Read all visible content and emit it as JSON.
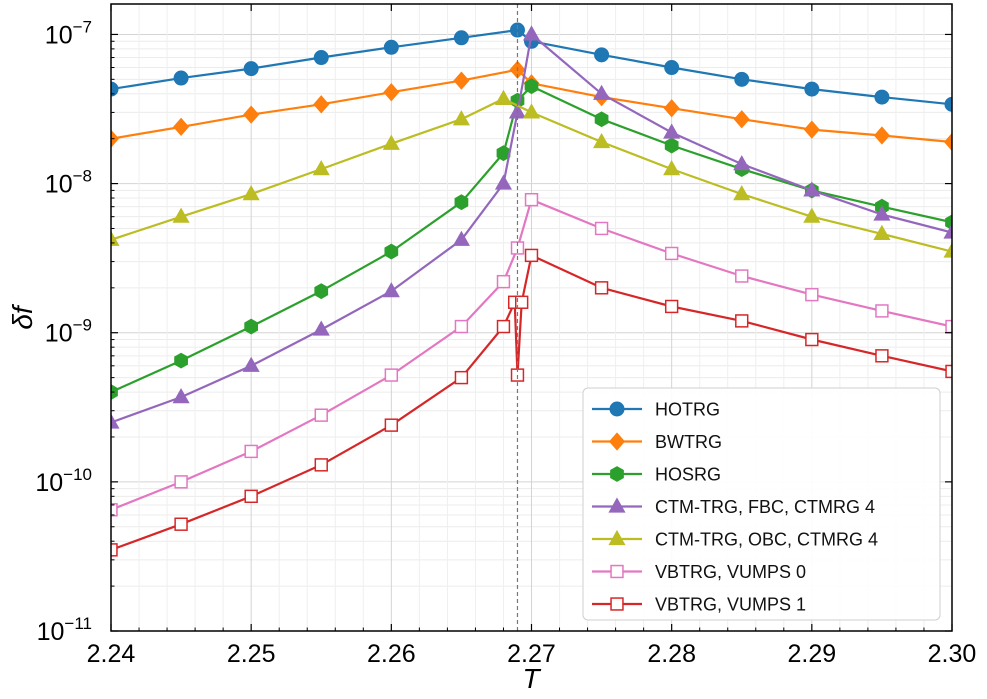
{
  "chart_data": {
    "type": "line",
    "scale": {
      "x": "linear",
      "y": "log"
    },
    "xlabel": "T",
    "ylabel": "δf",
    "xlim": [
      2.24,
      2.3
    ],
    "ylim": [
      1e-11,
      1.6e-07
    ],
    "critical_temperature": 2.269,
    "x_ticks": [
      {
        "value": 2.24,
        "label": "2.24"
      },
      {
        "value": 2.25,
        "label": "2.25"
      },
      {
        "value": 2.26,
        "label": "2.26"
      },
      {
        "value": 2.27,
        "label": "2.27"
      },
      {
        "value": 2.28,
        "label": "2.28"
      },
      {
        "value": 2.29,
        "label": "2.29"
      },
      {
        "value": 2.3,
        "label": "2.30"
      }
    ],
    "y_ticks": [
      {
        "value": 1e-11,
        "base": "10",
        "exp": "−11"
      },
      {
        "value": 1e-10,
        "base": "10",
        "exp": "−10"
      },
      {
        "value": 1e-09,
        "base": "10",
        "exp": "−9"
      },
      {
        "value": 1e-08,
        "base": "10",
        "exp": "−8"
      },
      {
        "value": 1e-07,
        "base": "10",
        "exp": "−7"
      }
    ],
    "legend_position": "lower-right",
    "series": [
      {
        "name": "HOTRG",
        "color": "#1f77b4",
        "marker": "circle",
        "filled": true,
        "x": [
          2.24,
          2.245,
          2.25,
          2.255,
          2.26,
          2.265,
          2.269,
          2.27,
          2.275,
          2.28,
          2.285,
          2.29,
          2.295,
          2.3
        ],
        "y": [
          4.3e-08,
          5.1e-08,
          5.9e-08,
          7e-08,
          8.2e-08,
          9.5e-08,
          1.07e-07,
          9e-08,
          7.3e-08,
          6e-08,
          5e-08,
          4.3e-08,
          3.8e-08,
          3.4e-08
        ]
      },
      {
        "name": "BWTRG",
        "color": "#ff7f0e",
        "marker": "diamond",
        "filled": true,
        "x": [
          2.24,
          2.245,
          2.25,
          2.255,
          2.26,
          2.265,
          2.269,
          2.27,
          2.275,
          2.28,
          2.285,
          2.29,
          2.295,
          2.3
        ],
        "y": [
          2e-08,
          2.4e-08,
          2.9e-08,
          3.4e-08,
          4.1e-08,
          4.9e-08,
          5.8e-08,
          4.7e-08,
          3.8e-08,
          3.2e-08,
          2.7e-08,
          2.3e-08,
          2.1e-08,
          1.9e-08
        ]
      },
      {
        "name": "HOSRG",
        "color": "#2ca02c",
        "marker": "hexagon",
        "filled": true,
        "x": [
          2.24,
          2.245,
          2.25,
          2.255,
          2.26,
          2.265,
          2.268,
          2.269,
          2.27,
          2.275,
          2.28,
          2.285,
          2.29,
          2.295,
          2.3
        ],
        "y": [
          4e-10,
          6.5e-10,
          1.1e-09,
          1.9e-09,
          3.5e-09,
          7.5e-09,
          1.6e-08,
          3.6e-08,
          4.5e-08,
          2.7e-08,
          1.8e-08,
          1.25e-08,
          9e-09,
          7e-09,
          5.5e-09
        ]
      },
      {
        "name": "CTM-TRG, FBC, CTMRG 4",
        "color": "#9467bd",
        "marker": "triangle",
        "filled": true,
        "x": [
          2.24,
          2.245,
          2.25,
          2.255,
          2.26,
          2.265,
          2.268,
          2.269,
          2.27,
          2.275,
          2.28,
          2.285,
          2.29,
          2.295,
          2.3
        ],
        "y": [
          2.5e-10,
          3.7e-10,
          6e-10,
          1.05e-09,
          1.9e-09,
          4.2e-09,
          1e-08,
          3e-08,
          1e-07,
          4e-08,
          2.2e-08,
          1.35e-08,
          9e-09,
          6.2e-09,
          4.7e-09
        ]
      },
      {
        "name": "CTM-TRG, OBC, CTMRG 4",
        "color": "#bcbd22",
        "marker": "triangle",
        "filled": true,
        "x": [
          2.24,
          2.245,
          2.25,
          2.255,
          2.26,
          2.265,
          2.268,
          2.27,
          2.275,
          2.28,
          2.285,
          2.29,
          2.295,
          2.3
        ],
        "y": [
          4.2e-09,
          6e-09,
          8.5e-09,
          1.25e-08,
          1.85e-08,
          2.7e-08,
          3.7e-08,
          3e-08,
          1.9e-08,
          1.25e-08,
          8.5e-09,
          6e-09,
          4.6e-09,
          3.5e-09
        ]
      },
      {
        "name": "VBTRG, VUMPS 0",
        "color": "#e377c2",
        "marker": "square",
        "filled": false,
        "x": [
          2.24,
          2.245,
          2.25,
          2.255,
          2.26,
          2.265,
          2.268,
          2.269,
          2.27,
          2.275,
          2.28,
          2.285,
          2.29,
          2.295,
          2.3
        ],
        "y": [
          6.5e-11,
          1e-10,
          1.6e-10,
          2.8e-10,
          5.2e-10,
          1.1e-09,
          2.2e-09,
          3.7e-09,
          7.8e-09,
          5e-09,
          3.4e-09,
          2.4e-09,
          1.8e-09,
          1.4e-09,
          1.1e-09
        ]
      },
      {
        "name": "VBTRG, VUMPS 1",
        "color": "#d62728",
        "marker": "square",
        "filled": false,
        "x": [
          2.24,
          2.245,
          2.25,
          2.255,
          2.26,
          2.265,
          2.268,
          2.2688,
          2.269,
          2.2693,
          2.27,
          2.275,
          2.28,
          2.285,
          2.29,
          2.295,
          2.3
        ],
        "y": [
          3.5e-11,
          5.2e-11,
          8e-11,
          1.3e-10,
          2.4e-10,
          5e-10,
          1.1e-09,
          1.6e-09,
          5.2e-10,
          1.6e-09,
          3.3e-09,
          2e-09,
          1.5e-09,
          1.2e-09,
          9e-10,
          7e-10,
          5.5e-10
        ]
      }
    ]
  }
}
